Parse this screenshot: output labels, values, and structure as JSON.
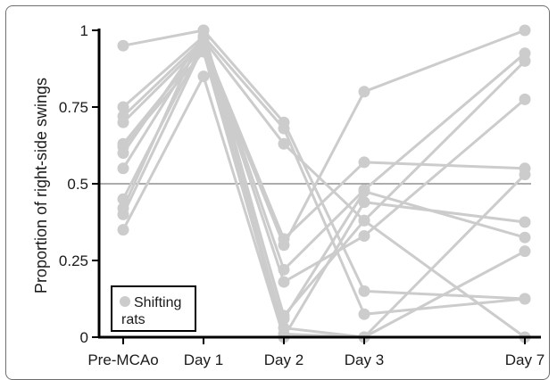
{
  "chart_data": {
    "type": "line",
    "title": "",
    "xlabel": "",
    "ylabel": "Proportion of right-side swings",
    "categories": [
      "Pre-MCAo",
      "Day 1",
      "Day 2",
      "Day 3",
      "Day 7"
    ],
    "x_positions": [
      1,
      2,
      3,
      4,
      6
    ],
    "ylim": [
      0,
      1
    ],
    "yticks": [
      0,
      0.25,
      0.5,
      0.75,
      1
    ],
    "ytick_labels": [
      "0",
      "0.25",
      "0.5",
      "0.75",
      "1"
    ],
    "reference_line": 0.5,
    "legend": {
      "label": "Shifting rats",
      "line1": "Shifting",
      "line2": "rats",
      "placement": "bottom-left"
    },
    "series_color": "#cccccc",
    "reference_color": "#7a7a7a",
    "series": [
      {
        "values": [
          0.95,
          1.0,
          0.7,
          0.15,
          0.125
        ]
      },
      {
        "values": [
          0.75,
          0.98,
          0.68,
          0.075,
          0.125
        ]
      },
      {
        "values": [
          0.72,
          0.97,
          0.63,
          0.38,
          0.0
        ]
      },
      {
        "values": [
          0.7,
          0.96,
          0.32,
          0.57,
          0.55
        ]
      },
      {
        "values": [
          0.63,
          0.95,
          0.3,
          0.8,
          1.0
        ]
      },
      {
        "values": [
          0.6,
          0.98,
          0.22,
          0.48,
          0.925
        ]
      },
      {
        "values": [
          0.55,
          0.97,
          0.18,
          0.33,
          0.775
        ]
      },
      {
        "values": [
          0.45,
          0.96,
          0.07,
          0.38,
          0.9
        ]
      },
      {
        "values": [
          0.4,
          0.95,
          0.03,
          0.0,
          0.53
        ]
      },
      {
        "values": [
          0.35,
          0.85,
          0.0,
          0.44,
          0.375
        ]
      },
      {
        "values": [
          0.42,
          1.0,
          0.06,
          0.475,
          0.325
        ]
      },
      {
        "values": [
          0.62,
          0.93,
          0.01,
          0.0,
          0.28
        ]
      }
    ]
  }
}
